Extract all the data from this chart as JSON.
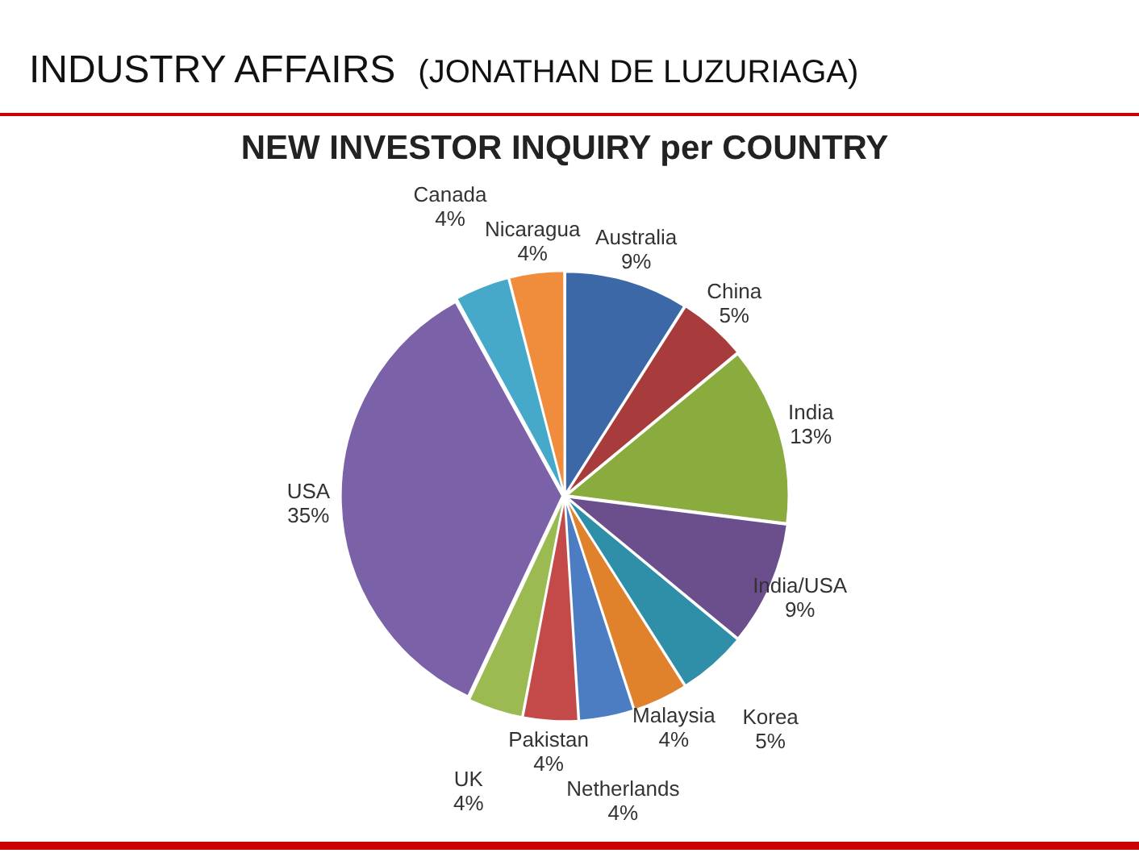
{
  "chart_data": {
    "type": "pie",
    "title": "NEW INVESTOR INQUIRY per COUNTRY",
    "annotations": [
      "INDUSTRY AFFAIRS",
      "(JONATHAN DE LUZURIAGA)"
    ],
    "categories": [
      "Australia",
      "China",
      "India",
      "India/USA",
      "Korea",
      "Malaysia",
      "Netherlands",
      "Pakistan",
      "UK",
      "USA",
      "Canada",
      "Nicaragua"
    ],
    "values": [
      9,
      5,
      13,
      9,
      5,
      4,
      4,
      4,
      4,
      35,
      4,
      4
    ],
    "value_labels": [
      "9%",
      "5%",
      "13%",
      "9%",
      "5%",
      "4%",
      "4%",
      "4%",
      "4%",
      "35%",
      "4%",
      "4%"
    ],
    "colors": [
      "#3c68a8",
      "#a83c3c",
      "#8aab3e",
      "#6b4f8c",
      "#2f8fa8",
      "#e0812c",
      "#4c7cc2",
      "#c44a4a",
      "#9bba52",
      "#7b62a8",
      "#46a9c9",
      "#f08d3c"
    ],
    "legend": false
  }
}
